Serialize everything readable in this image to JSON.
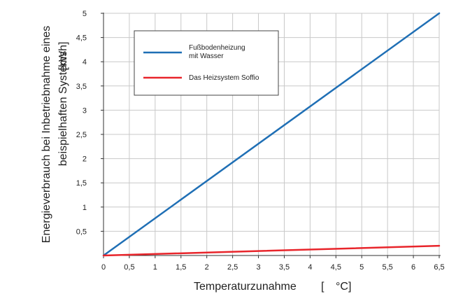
{
  "chart_data": {
    "type": "line",
    "xlabel": "Temperaturzunahme",
    "xunit_open": "[",
    "xunit": "°C]",
    "ylabel_line1": "Energieverbrauch bei Inbetriebnahme eines",
    "ylabel_line2": "beispielhaften Systems",
    "yunit": "[kWh]",
    "xlim": [
      0,
      6.5
    ],
    "ylim": [
      0,
      5
    ],
    "xticks": [
      "0",
      "0,5",
      "1",
      "1,5",
      "2",
      "2,5",
      "3",
      "3,5",
      "4",
      "4,5",
      "5",
      "5,5",
      "6",
      "6,5"
    ],
    "yticks": [
      "0,5",
      "1",
      "1,5",
      "2",
      "2,5",
      "3",
      "3,5",
      "4",
      "4,5",
      "5"
    ],
    "grid": true,
    "legend_position": "top-left",
    "series": [
      {
        "name_line1": "Fußbodenheizung",
        "name_line2": "mit Wasser",
        "color": "#1f6fb5",
        "x": [
          0,
          6.5
        ],
        "y": [
          0,
          5
        ]
      },
      {
        "name_line1": "Das Heizsystem Soffio",
        "name_line2": "",
        "color": "#e8252b",
        "x": [
          0,
          6.5
        ],
        "y": [
          0,
          0.2
        ]
      }
    ],
    "colors": {
      "unit": "#e8252b",
      "grid": "#c8c8c8",
      "axis": "#333333"
    }
  }
}
